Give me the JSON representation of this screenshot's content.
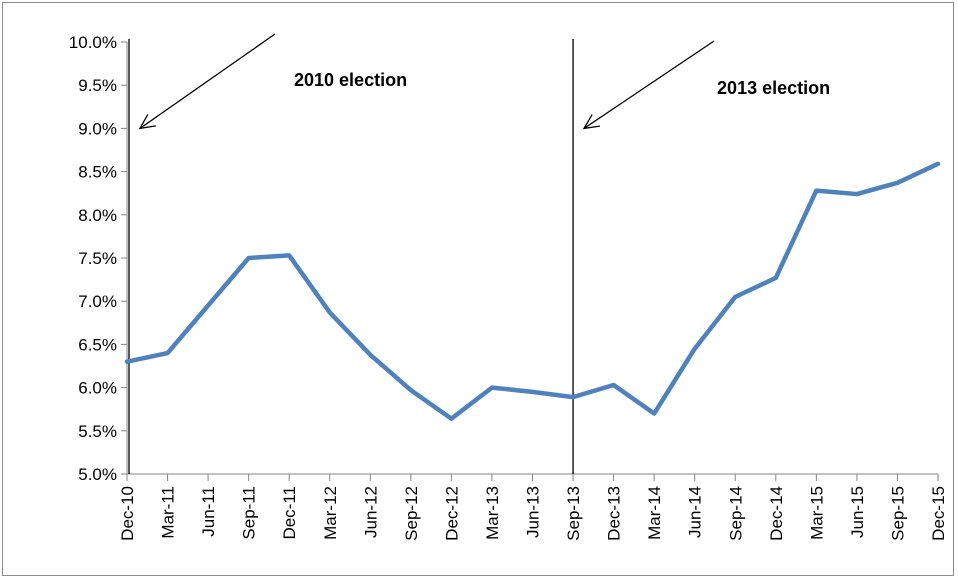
{
  "chart_data": {
    "type": "line",
    "title": "",
    "xlabel": "",
    "ylabel": "",
    "categories": [
      "Dec-10",
      "Mar-11",
      "Jun-11",
      "Sep-11",
      "Dec-11",
      "Mar-12",
      "Jun-12",
      "Sep-12",
      "Dec-12",
      "Mar-13",
      "Jun-13",
      "Sep-13",
      "Dec-13",
      "Mar-14",
      "Jun-14",
      "Sep-14",
      "Dec-14",
      "Mar-15",
      "Jun-15",
      "Sep-15",
      "Dec-15"
    ],
    "series": [
      {
        "values": [
          6.3,
          6.4,
          6.95,
          7.5,
          7.53,
          6.87,
          6.38,
          5.97,
          5.64,
          6.0,
          5.95,
          5.89,
          6.03,
          5.7,
          6.45,
          7.05,
          7.27,
          8.28,
          8.24,
          8.37,
          8.59
        ],
        "color": "#4f81bd"
      }
    ],
    "ylim": [
      5.0,
      10.0
    ],
    "yticks": [
      "5.0%",
      "5.5%",
      "6.0%",
      "6.5%",
      "7.0%",
      "7.5%",
      "8.0%",
      "8.5%",
      "9.0%",
      "9.5%",
      "10.0%"
    ],
    "grid": false,
    "legend": "none",
    "annotations": [
      {
        "text": "2010 election",
        "at_category": "Dec-10",
        "arrow_target_value": 9.0
      },
      {
        "text": "2013 election",
        "at_category": "Sep-13",
        "arrow_target_value": 9.0
      }
    ]
  }
}
